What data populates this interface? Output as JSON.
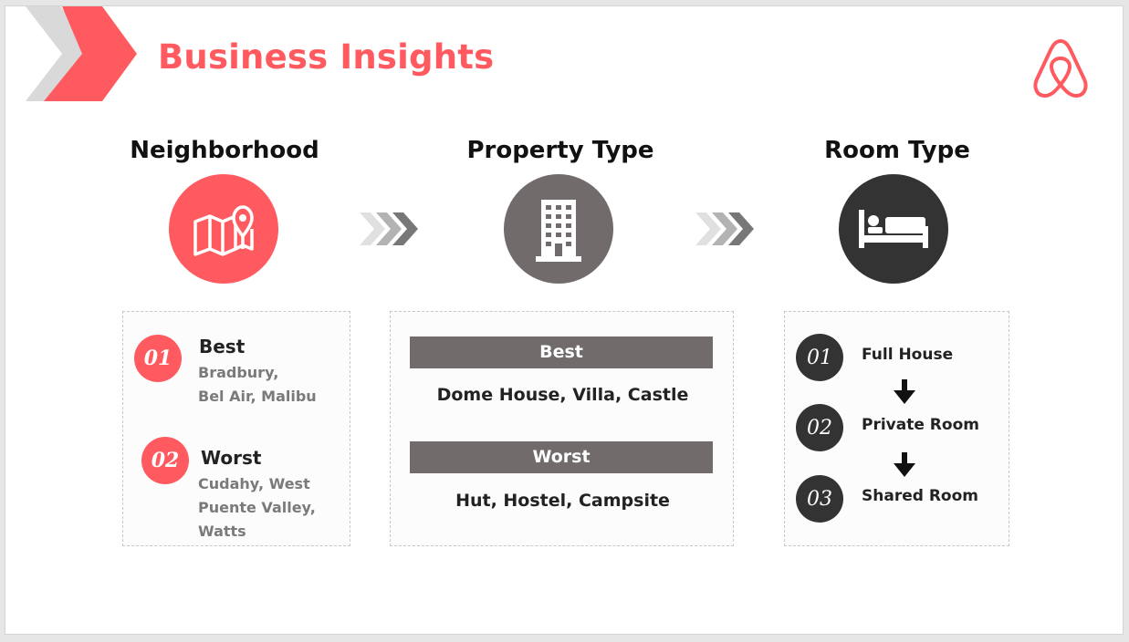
{
  "header": {
    "title": "Business Insights",
    "accent_color": "#ff5a5f",
    "logo_icon": "airbnb-logo-icon"
  },
  "sections": {
    "neighborhood": {
      "heading": "Neighborhood",
      "icon": "map-pin-icon",
      "circle_color": "#ff5a5f",
      "best": {
        "badge": "01",
        "label": "Best",
        "lines": [
          "Bradbury,",
          "Bel Air, Malibu"
        ]
      },
      "worst": {
        "badge": "02",
        "label": "Worst",
        "lines": [
          "Cudahy, West",
          "Puente Valley,",
          "Watts"
        ]
      }
    },
    "property": {
      "heading": "Property Type",
      "icon": "building-icon",
      "circle_color": "#716b6b",
      "best_label": "Best",
      "best_text": "Dome House, Villa, Castle",
      "worst_label": "Worst",
      "worst_text": "Hut, Hostel, Campsite"
    },
    "room": {
      "heading": "Room Type",
      "icon": "bed-icon",
      "circle_color": "#333333",
      "items": [
        {
          "badge": "01",
          "label": "Full House"
        },
        {
          "badge": "02",
          "label": "Private Room"
        },
        {
          "badge": "03",
          "label": "Shared Room"
        }
      ]
    }
  }
}
